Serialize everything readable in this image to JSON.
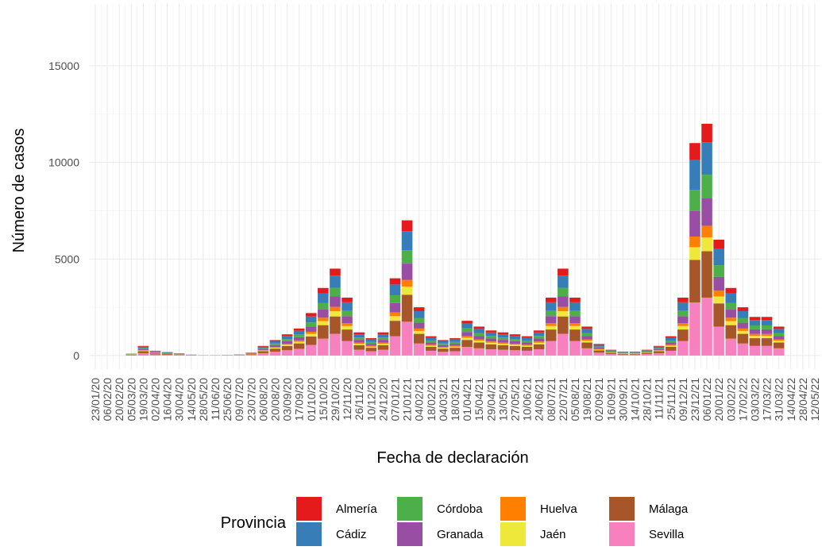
{
  "chart_data": {
    "type": "stacked_bar",
    "x_label": "Fecha de declaración",
    "y_label": "Número de casos",
    "legend_title": "Provincia",
    "categories": [
      "23/01/20",
      "06/02/20",
      "20/02/20",
      "05/03/20",
      "19/03/20",
      "02/04/20",
      "16/04/20",
      "30/04/20",
      "14/05/20",
      "28/05/20",
      "11/06/20",
      "25/06/20",
      "09/07/20",
      "23/07/20",
      "06/08/20",
      "20/08/20",
      "03/09/20",
      "17/09/20",
      "01/10/20",
      "15/10/20",
      "29/10/20",
      "12/11/20",
      "26/11/20",
      "10/12/20",
      "24/12/20",
      "07/01/21",
      "21/01/21",
      "04/02/21",
      "18/02/21",
      "04/03/21",
      "18/03/21",
      "01/04/21",
      "15/04/21",
      "29/04/21",
      "13/05/21",
      "27/05/21",
      "10/06/21",
      "24/06/21",
      "08/07/21",
      "22/07/21",
      "05/08/21",
      "19/08/21",
      "02/09/21",
      "16/09/21",
      "30/09/21",
      "14/10/21",
      "28/10/21",
      "11/11/21",
      "25/11/21",
      "09/12/21",
      "23/12/21",
      "06/01/22",
      "20/01/22",
      "03/02/22",
      "17/02/22",
      "03/03/22",
      "17/03/22",
      "31/03/22",
      "14/04/22",
      "28/04/22",
      "12/05/22"
    ],
    "series": [
      {
        "name": "Almería",
        "color": "#e41a1c",
        "values": [
          0,
          0,
          0,
          8,
          40,
          20,
          14,
          10,
          4,
          2,
          2,
          2,
          5,
          12,
          40,
          64,
          88,
          112,
          176,
          280,
          360,
          240,
          96,
          72,
          96,
          320,
          560,
          200,
          80,
          64,
          72,
          144,
          120,
          104,
          96,
          88,
          80,
          104,
          240,
          360,
          240,
          120,
          48,
          24,
          16,
          16,
          24,
          40,
          80,
          240,
          880,
          960,
          480,
          280,
          200,
          160,
          160,
          120,
          null,
          null,
          null
        ]
      },
      {
        "name": "Cádiz",
        "color": "#377eb8",
        "values": [
          0,
          0,
          0,
          14,
          70,
          35,
          25,
          17,
          7,
          3,
          3,
          4,
          8,
          21,
          70,
          112,
          154,
          196,
          308,
          490,
          630,
          420,
          168,
          126,
          168,
          560,
          980,
          350,
          140,
          112,
          126,
          252,
          210,
          182,
          168,
          154,
          140,
          182,
          420,
          630,
          420,
          210,
          84,
          42,
          28,
          28,
          42,
          70,
          140,
          420,
          1540,
          1680,
          840,
          490,
          350,
          280,
          280,
          210,
          null,
          null,
          null
        ]
      },
      {
        "name": "Córdoba",
        "color": "#4daf4a",
        "values": [
          0,
          0,
          0,
          10,
          50,
          25,
          18,
          12,
          5,
          2,
          2,
          3,
          6,
          15,
          50,
          80,
          110,
          140,
          220,
          350,
          450,
          300,
          120,
          90,
          120,
          400,
          700,
          250,
          100,
          80,
          90,
          180,
          150,
          130,
          120,
          110,
          100,
          130,
          300,
          450,
          300,
          150,
          60,
          30,
          20,
          20,
          30,
          50,
          100,
          300,
          1100,
          1200,
          600,
          350,
          250,
          200,
          200,
          150,
          null,
          null,
          null
        ]
      },
      {
        "name": "Granada",
        "color": "#984ea3",
        "values": [
          0,
          0,
          0,
          12,
          60,
          30,
          22,
          14,
          6,
          2,
          2,
          4,
          7,
          18,
          60,
          96,
          132,
          168,
          264,
          420,
          540,
          360,
          144,
          108,
          144,
          480,
          840,
          300,
          120,
          96,
          108,
          216,
          180,
          156,
          144,
          132,
          120,
          156,
          360,
          540,
          360,
          180,
          72,
          36,
          24,
          24,
          36,
          60,
          120,
          360,
          1320,
          1440,
          720,
          420,
          300,
          240,
          240,
          180,
          null,
          null,
          null
        ]
      },
      {
        "name": "Huelva",
        "color": "#ff7f00",
        "values": [
          0,
          0,
          0,
          5,
          25,
          12,
          9,
          6,
          2,
          1,
          1,
          2,
          3,
          8,
          25,
          40,
          55,
          70,
          110,
          175,
          225,
          150,
          60,
          45,
          60,
          200,
          350,
          125,
          50,
          40,
          45,
          90,
          75,
          65,
          60,
          55,
          50,
          65,
          150,
          225,
          150,
          75,
          30,
          15,
          10,
          10,
          15,
          25,
          50,
          150,
          550,
          600,
          300,
          175,
          125,
          100,
          100,
          75,
          null,
          null,
          null
        ]
      },
      {
        "name": "Jaén",
        "color": "#eee83a",
        "values": [
          0,
          0,
          0,
          6,
          30,
          15,
          11,
          7,
          3,
          1,
          1,
          2,
          4,
          9,
          30,
          48,
          66,
          84,
          132,
          210,
          270,
          180,
          72,
          54,
          72,
          240,
          420,
          150,
          60,
          48,
          54,
          108,
          90,
          78,
          72,
          66,
          60,
          78,
          180,
          270,
          180,
          90,
          36,
          18,
          12,
          12,
          18,
          30,
          60,
          180,
          660,
          720,
          360,
          210,
          150,
          120,
          120,
          90,
          null,
          null,
          null
        ]
      },
      {
        "name": "Málaga",
        "color": "#a65628",
        "values": [
          0,
          0,
          0,
          20,
          100,
          50,
          36,
          24,
          10,
          4,
          4,
          6,
          12,
          30,
          100,
          160,
          220,
          280,
          440,
          700,
          900,
          600,
          240,
          180,
          240,
          800,
          1400,
          500,
          200,
          160,
          180,
          360,
          300,
          260,
          240,
          220,
          200,
          260,
          600,
          900,
          600,
          300,
          120,
          60,
          40,
          40,
          60,
          100,
          200,
          600,
          2200,
          2400,
          1200,
          700,
          500,
          400,
          400,
          300,
          null,
          null,
          null
        ]
      },
      {
        "name": "Sevilla",
        "color": "#f781bf",
        "values": [
          0,
          0,
          0,
          25,
          125,
          62,
          45,
          30,
          12,
          5,
          5,
          7,
          15,
          37,
          125,
          200,
          275,
          350,
          550,
          875,
          1125,
          750,
          300,
          225,
          300,
          1000,
          1750,
          625,
          250,
          200,
          225,
          450,
          375,
          325,
          300,
          275,
          250,
          325,
          750,
          1125,
          750,
          375,
          150,
          75,
          50,
          50,
          75,
          125,
          250,
          750,
          2750,
          3000,
          1500,
          875,
          625,
          500,
          500,
          375,
          null,
          null,
          null
        ]
      }
    ],
    "ylim": [
      -700,
      18200
    ],
    "yticks": [
      0,
      5000,
      10000,
      15000
    ],
    "grid": true
  }
}
